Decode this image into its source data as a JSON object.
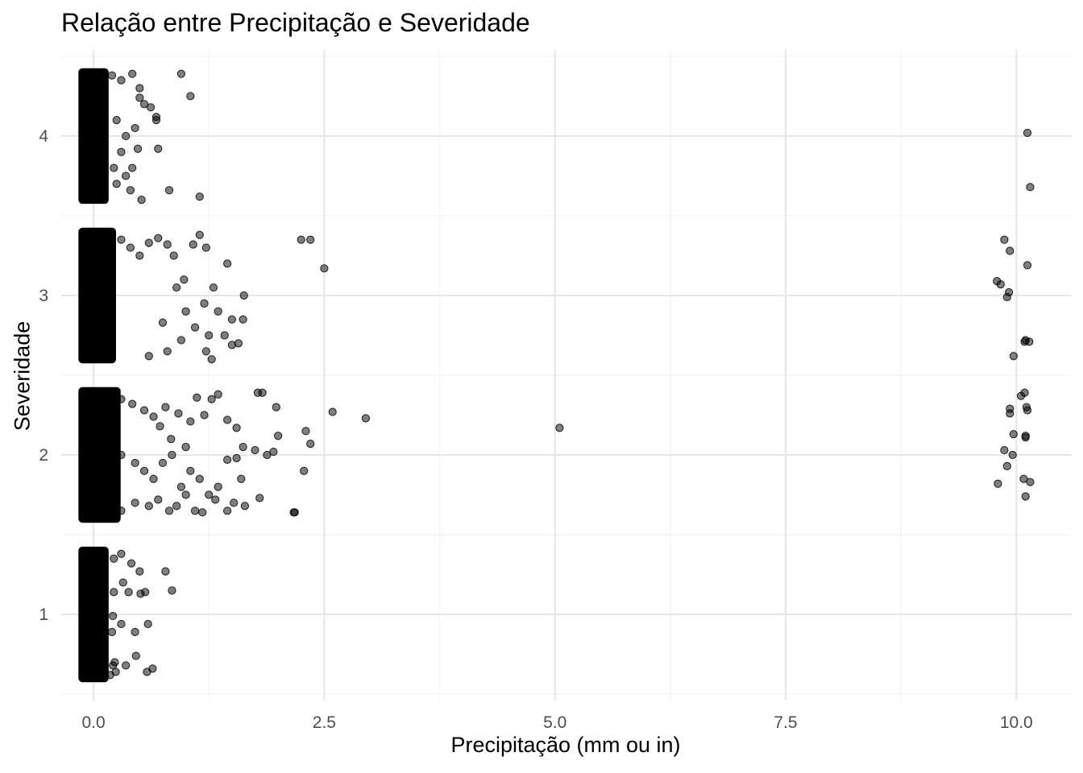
{
  "chart_data": {
    "type": "scatter",
    "title": "Relação entre Precipitação e Severidade",
    "xlabel": "Precipitação (mm ou in)",
    "ylabel": "Severidade",
    "x_ticks": [
      "0.0",
      "2.5",
      "5.0",
      "7.5",
      "10.0"
    ],
    "x_tick_values": [
      0,
      2.5,
      5,
      7.5,
      10
    ],
    "y_ticks": [
      "1",
      "2",
      "3",
      "4"
    ],
    "y_tick_values": [
      1,
      2,
      3,
      4
    ],
    "xlim": [
      -0.35,
      10.6
    ],
    "ylim": [
      0.46,
      4.54
    ],
    "grid": true,
    "point_color": "#000000",
    "point_opacity": 0.5,
    "jitter": "y jittered ±0.4 around integer severities",
    "series": [
      {
        "values_dense": [
          {
            "severity": 1,
            "x_range": [
              -0.12,
              0.12
            ],
            "y_range": [
              0.6,
              1.4
            ]
          },
          {
            "severity": 2,
            "x_range": [
              -0.12,
              0.25
            ],
            "y_range": [
              1.6,
              2.4
            ]
          },
          {
            "severity": 3,
            "x_range": [
              -0.12,
              0.2
            ],
            "y_range": [
              2.6,
              3.4
            ]
          },
          {
            "severity": 4,
            "x_range": [
              -0.12,
              0.12
            ],
            "y_range": [
              3.6,
              4.4
            ]
          }
        ],
        "points": [
          [
            0.22,
            1.35
          ],
          [
            0.3,
            1.38
          ],
          [
            0.41,
            1.32
          ],
          [
            0.5,
            1.27
          ],
          [
            0.32,
            1.2
          ],
          [
            0.22,
            1.14
          ],
          [
            0.38,
            1.14
          ],
          [
            0.51,
            1.13
          ],
          [
            0.56,
            1.14
          ],
          [
            0.85,
            1.15
          ],
          [
            0.78,
            1.27
          ],
          [
            0.3,
            0.94
          ],
          [
            0.21,
            0.99
          ],
          [
            0.2,
            0.89
          ],
          [
            0.45,
            0.89
          ],
          [
            0.46,
            0.74
          ],
          [
            0.59,
            0.94
          ],
          [
            0.21,
            0.68
          ],
          [
            0.23,
            0.7
          ],
          [
            0.35,
            0.68
          ],
          [
            0.24,
            0.64
          ],
          [
            0.58,
            0.64
          ],
          [
            0.64,
            0.66
          ],
          [
            0.18,
            0.62
          ],
          [
            0.19,
            2.38
          ],
          [
            0.3,
            2.35
          ],
          [
            0.42,
            2.32
          ],
          [
            0.55,
            2.28
          ],
          [
            0.65,
            2.24
          ],
          [
            0.72,
            2.18
          ],
          [
            0.78,
            2.3
          ],
          [
            0.84,
            2.1
          ],
          [
            0.92,
            2.26
          ],
          [
            1.0,
            2.05
          ],
          [
            1.05,
            2.21
          ],
          [
            1.12,
            2.36
          ],
          [
            1.2,
            2.25
          ],
          [
            1.28,
            2.35
          ],
          [
            1.35,
            2.38
          ],
          [
            1.45,
            2.22
          ],
          [
            1.55,
            2.17
          ],
          [
            1.62,
            2.05
          ],
          [
            1.78,
            2.39
          ],
          [
            1.83,
            2.39
          ],
          [
            1.98,
            2.3
          ],
          [
            2.3,
            2.15
          ],
          [
            2.35,
            2.07
          ],
          [
            2.59,
            2.27
          ],
          [
            2.95,
            2.23
          ],
          [
            5.05,
            2.17
          ],
          [
            0.3,
            2.0
          ],
          [
            0.45,
            1.95
          ],
          [
            0.55,
            1.9
          ],
          [
            0.65,
            1.85
          ],
          [
            0.75,
            1.95
          ],
          [
            0.85,
            2.0
          ],
          [
            0.95,
            1.8
          ],
          [
            1.05,
            1.9
          ],
          [
            1.15,
            1.85
          ],
          [
            1.25,
            1.75
          ],
          [
            1.35,
            1.8
          ],
          [
            1.45,
            1.97
          ],
          [
            1.55,
            1.98
          ],
          [
            1.6,
            1.85
          ],
          [
            1.75,
            2.03
          ],
          [
            1.88,
            2.0
          ],
          [
            1.95,
            2.02
          ],
          [
            2.0,
            2.12
          ],
          [
            2.28,
            1.9
          ],
          [
            2.18,
            1.64
          ],
          [
            0.3,
            1.65
          ],
          [
            0.45,
            1.7
          ],
          [
            0.6,
            1.68
          ],
          [
            0.7,
            1.72
          ],
          [
            0.82,
            1.65
          ],
          [
            0.9,
            1.68
          ],
          [
            1.0,
            1.75
          ],
          [
            1.1,
            1.65
          ],
          [
            1.18,
            1.64
          ],
          [
            1.32,
            1.72
          ],
          [
            1.45,
            1.65
          ],
          [
            1.52,
            1.7
          ],
          [
            1.64,
            1.68
          ],
          [
            1.8,
            1.73
          ],
          [
            2.17,
            1.64
          ],
          [
            9.8,
            1.82
          ],
          [
            9.87,
            2.03
          ],
          [
            9.9,
            1.93
          ],
          [
            9.93,
            2.26
          ],
          [
            9.93,
            2.29
          ],
          [
            9.96,
            2.0
          ],
          [
            9.97,
            2.13
          ],
          [
            10.05,
            2.37
          ],
          [
            10.09,
            2.39
          ],
          [
            10.1,
            2.11
          ],
          [
            10.1,
            2.12
          ],
          [
            10.11,
            2.3
          ],
          [
            10.12,
            2.28
          ],
          [
            10.08,
            1.85
          ],
          [
            10.15,
            1.83
          ],
          [
            10.1,
            1.74
          ],
          [
            0.2,
            3.38
          ],
          [
            0.3,
            3.35
          ],
          [
            0.4,
            3.3
          ],
          [
            0.5,
            3.25
          ],
          [
            0.6,
            3.33
          ],
          [
            0.7,
            3.36
          ],
          [
            0.8,
            3.32
          ],
          [
            0.87,
            3.25
          ],
          [
            0.98,
            3.1
          ],
          [
            1.08,
            3.32
          ],
          [
            1.15,
            3.38
          ],
          [
            1.22,
            3.3
          ],
          [
            1.45,
            3.2
          ],
          [
            1.35,
            2.9
          ],
          [
            1.5,
            2.85
          ],
          [
            1.62,
            2.85
          ],
          [
            1.63,
            3.0
          ],
          [
            1.3,
            3.05
          ],
          [
            1.2,
            2.95
          ],
          [
            0.9,
            3.05
          ],
          [
            1.0,
            2.9
          ],
          [
            1.1,
            2.8
          ],
          [
            1.25,
            2.75
          ],
          [
            1.42,
            2.75
          ],
          [
            1.5,
            2.69
          ],
          [
            1.57,
            2.7
          ],
          [
            1.22,
            2.65
          ],
          [
            1.28,
            2.6
          ],
          [
            0.95,
            2.72
          ],
          [
            2.25,
            3.35
          ],
          [
            2.35,
            3.35
          ],
          [
            2.5,
            3.17
          ],
          [
            0.6,
            2.62
          ],
          [
            0.8,
            2.65
          ],
          [
            0.75,
            2.83
          ],
          [
            9.79,
            3.09
          ],
          [
            9.83,
            3.07
          ],
          [
            9.87,
            3.35
          ],
          [
            9.9,
            2.99
          ],
          [
            9.92,
            3.02
          ],
          [
            9.93,
            3.28
          ],
          [
            9.97,
            2.62
          ],
          [
            10.09,
            2.71
          ],
          [
            10.1,
            2.72
          ],
          [
            10.14,
            2.71
          ],
          [
            10.12,
            3.19
          ],
          [
            0.2,
            4.38
          ],
          [
            0.3,
            4.35
          ],
          [
            0.42,
            4.39
          ],
          [
            0.5,
            4.3
          ],
          [
            0.55,
            4.2
          ],
          [
            0.62,
            4.18
          ],
          [
            0.68,
            4.12
          ],
          [
            0.68,
            4.1
          ],
          [
            0.5,
            4.24
          ],
          [
            0.95,
            4.39
          ],
          [
            1.05,
            4.25
          ],
          [
            0.25,
            4.1
          ],
          [
            0.35,
            4.0
          ],
          [
            0.45,
            4.05
          ],
          [
            0.3,
            3.9
          ],
          [
            0.48,
            3.92
          ],
          [
            0.7,
            3.92
          ],
          [
            0.22,
            3.8
          ],
          [
            0.35,
            3.75
          ],
          [
            0.42,
            3.8
          ],
          [
            0.25,
            3.7
          ],
          [
            0.4,
            3.66
          ],
          [
            0.52,
            3.6
          ],
          [
            0.82,
            3.66
          ],
          [
            1.15,
            3.62
          ],
          [
            10.12,
            4.02
          ],
          [
            10.15,
            3.68
          ]
        ]
      }
    ]
  }
}
